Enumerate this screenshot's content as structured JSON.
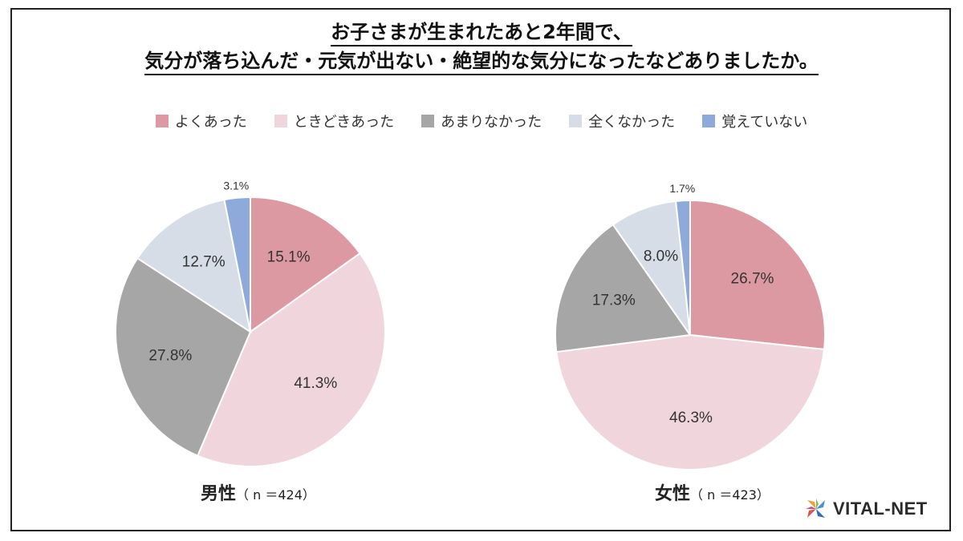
{
  "title": {
    "line1": "お子さまが生まれたあと2年間で、",
    "line2": "気分が落ち込んだ・元気が出ない・絶望的な気分になったなどありましたか。"
  },
  "legend": [
    {
      "label": "よくあった",
      "color": "#dd99a2"
    },
    {
      "label": "ときどきあった",
      "color": "#f0d6dc"
    },
    {
      "label": "あまりなかった",
      "color": "#a6a6a6"
    },
    {
      "label": "全くなかった",
      "color": "#d6dde7"
    },
    {
      "label": "覚えていない",
      "color": "#8eaadb"
    }
  ],
  "chart_data": [
    {
      "type": "pie",
      "title": "男性",
      "n_label": "（ n ＝424）",
      "categories": [
        "よくあった",
        "ときどきあった",
        "あまりなかった",
        "全くなかった",
        "覚えていない"
      ],
      "values": [
        15.1,
        41.3,
        27.8,
        12.7,
        3.1
      ],
      "labels": [
        "15.1%",
        "41.3%",
        "27.8%",
        "12.7%",
        "3.1%"
      ]
    },
    {
      "type": "pie",
      "title": "女性",
      "n_label": "（ n ＝423）",
      "categories": [
        "よくあった",
        "ときどきあった",
        "あまりなかった",
        "全くなかった",
        "覚えていない"
      ],
      "values": [
        26.7,
        46.3,
        17.3,
        8.0,
        1.7
      ],
      "labels": [
        "26.7%",
        "46.3%",
        "17.3%",
        "8.0%",
        "1.7%"
      ]
    }
  ],
  "logo": {
    "text": "VITAL-NET"
  }
}
